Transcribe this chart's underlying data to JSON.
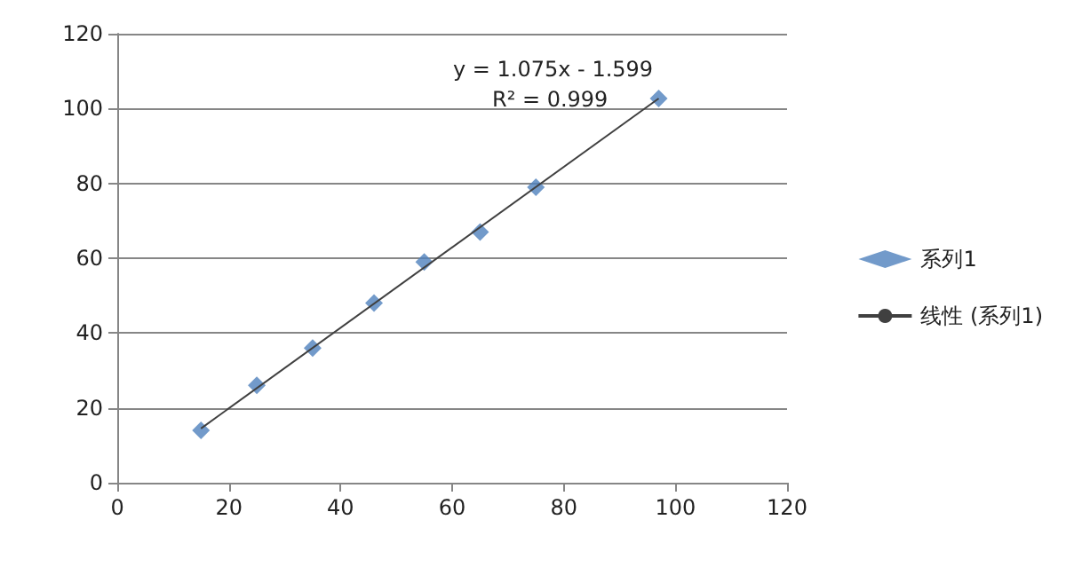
{
  "chart_data": {
    "type": "scatter",
    "series": [
      {
        "name": "系列1",
        "color": "#4f81bd",
        "x": [
          15,
          25,
          35,
          46,
          55,
          65,
          75,
          97
        ],
        "values": [
          14,
          26,
          36,
          48,
          59,
          67,
          79,
          102.7
        ]
      },
      {
        "name": "线性 (系列1)",
        "type": "line",
        "marker": "none",
        "color": "#404040",
        "x": [
          15,
          97
        ],
        "values": [
          14.5,
          102.7
        ]
      }
    ],
    "xlim": [
      0,
      120
    ],
    "xticks": [
      0,
      20,
      40,
      60,
      80,
      100,
      120
    ],
    "ylim": [
      0,
      120
    ],
    "yticks": [
      0,
      20,
      40,
      60,
      80,
      100,
      120
    ],
    "annotations": [
      "y = 1.075x - 1.599",
      "R² = 0.999"
    ],
    "grid": "y",
    "legend": "right",
    "marker": "diamond"
  }
}
